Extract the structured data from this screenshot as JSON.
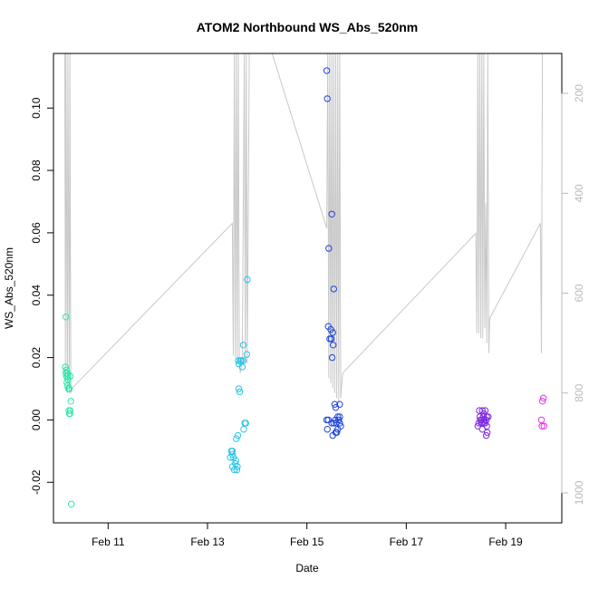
{
  "chart_data": {
    "type": "scatter",
    "title": "ATOM2 Northbound WS_Abs_520nm",
    "xlabel": "Date",
    "ylabel": "WS_Abs_520nm",
    "x_unit": "days in February",
    "xlim": [
      9.9,
      20.13
    ],
    "ylim": [
      -0.033,
      0.1175
    ],
    "y_ticks": [
      -0.02,
      0.0,
      0.02,
      0.04,
      0.06,
      0.08,
      0.1
    ],
    "y_tick_labels": [
      "-0.02",
      "0.00",
      "0.02",
      "0.04",
      "0.06",
      "0.08",
      "0.10"
    ],
    "x_ticks": [
      11,
      13,
      15,
      17,
      19
    ],
    "x_tick_labels": [
      "Feb 11",
      "Feb 13",
      "Feb 15",
      "Feb 17",
      "Feb 19"
    ],
    "secondary_y_axis": {
      "reversed": true,
      "lim": [
        120,
        1060
      ],
      "ticks": [
        200,
        400,
        600,
        800,
        1000
      ],
      "tick_labels": [
        "200",
        "400",
        "600",
        "800",
        "1000"
      ],
      "color": "#bbbbbb"
    },
    "grid": false,
    "legend": "none",
    "series": [
      {
        "marker": "open-circle",
        "color": "#2fe6a8",
        "points": [
          [
            10.15,
            0.033
          ],
          [
            10.14,
            0.017
          ],
          [
            10.16,
            0.016
          ],
          [
            10.15,
            0.015
          ],
          [
            10.18,
            0.015
          ],
          [
            10.16,
            0.014
          ],
          [
            10.19,
            0.014
          ],
          [
            10.24,
            0.014
          ],
          [
            10.19,
            0.013
          ],
          [
            10.17,
            0.012
          ],
          [
            10.18,
            0.011
          ],
          [
            10.2,
            0.01
          ],
          [
            10.22,
            0.01
          ],
          [
            10.25,
            0.006
          ],
          [
            10.21,
            0.003
          ],
          [
            10.24,
            0.003
          ],
          [
            10.22,
            0.002
          ],
          [
            10.23,
            0.002
          ],
          [
            10.26,
            -0.027
          ]
        ]
      },
      {
        "marker": "open-circle",
        "color": "#29c4e6",
        "points": [
          [
            13.8,
            0.045
          ],
          [
            13.72,
            0.024
          ],
          [
            13.79,
            0.021
          ],
          [
            13.62,
            0.019
          ],
          [
            13.66,
            0.019
          ],
          [
            13.68,
            0.019
          ],
          [
            13.72,
            0.019
          ],
          [
            13.63,
            0.018
          ],
          [
            13.7,
            0.017
          ],
          [
            13.63,
            0.01
          ],
          [
            13.65,
            0.009
          ],
          [
            13.75,
            -0.001
          ],
          [
            13.77,
            -0.001
          ],
          [
            13.73,
            -0.003
          ],
          [
            13.61,
            -0.005
          ],
          [
            13.58,
            -0.006
          ],
          [
            13.48,
            -0.01
          ],
          [
            13.5,
            -0.01
          ],
          [
            13.5,
            -0.011
          ],
          [
            13.46,
            -0.012
          ],
          [
            13.52,
            -0.012
          ],
          [
            13.57,
            -0.013
          ],
          [
            13.56,
            -0.014
          ],
          [
            13.5,
            -0.015
          ],
          [
            13.6,
            -0.015
          ],
          [
            13.54,
            -0.016
          ],
          [
            13.59,
            -0.016
          ]
        ]
      },
      {
        "marker": "open-circle",
        "color": "#2044dc",
        "points": [
          [
            15.4,
            0.112
          ],
          [
            15.41,
            0.103
          ],
          [
            15.5,
            0.066
          ],
          [
            15.44,
            0.055
          ],
          [
            15.54,
            0.042
          ],
          [
            15.43,
            0.03
          ],
          [
            15.48,
            0.029
          ],
          [
            15.52,
            0.028
          ],
          [
            15.46,
            0.026
          ],
          [
            15.49,
            0.026
          ],
          [
            15.53,
            0.024
          ],
          [
            15.51,
            0.02
          ],
          [
            15.56,
            0.005
          ],
          [
            15.66,
            0.005
          ],
          [
            15.58,
            0.004
          ],
          [
            15.62,
            0.001
          ],
          [
            15.66,
            0.001
          ],
          [
            15.4,
            0.0
          ],
          [
            15.43,
            0.0
          ],
          [
            15.57,
            0.0
          ],
          [
            15.64,
            0.0
          ],
          [
            15.5,
            -0.001
          ],
          [
            15.54,
            -0.001
          ],
          [
            15.59,
            -0.001
          ],
          [
            15.66,
            -0.001
          ],
          [
            15.68,
            -0.002
          ],
          [
            15.41,
            -0.003
          ],
          [
            15.62,
            -0.003
          ],
          [
            15.58,
            -0.004
          ],
          [
            15.6,
            -0.004
          ],
          [
            15.52,
            -0.005
          ]
        ]
      },
      {
        "marker": "open-circle",
        "color": "#7f2be0",
        "points": [
          [
            18.47,
            0.003
          ],
          [
            18.53,
            0.003
          ],
          [
            18.59,
            0.003
          ],
          [
            18.56,
            0.002
          ],
          [
            18.48,
            0.001
          ],
          [
            18.55,
            0.001
          ],
          [
            18.62,
            0.001
          ],
          [
            18.65,
            0.001
          ],
          [
            18.49,
            0.0
          ],
          [
            18.52,
            0.0
          ],
          [
            18.57,
            0.0
          ],
          [
            18.61,
            0.0
          ],
          [
            18.46,
            -0.001
          ],
          [
            18.51,
            -0.001
          ],
          [
            18.56,
            -0.001
          ],
          [
            18.59,
            -0.001
          ],
          [
            18.44,
            -0.002
          ],
          [
            18.62,
            -0.002
          ],
          [
            18.53,
            -0.003
          ],
          [
            18.63,
            -0.004
          ],
          [
            18.61,
            -0.005
          ]
        ]
      },
      {
        "marker": "open-circle",
        "color": "#e232e8",
        "points": [
          [
            19.76,
            0.007
          ],
          [
            19.74,
            0.006
          ],
          [
            19.72,
            0.0
          ],
          [
            19.73,
            -0.002
          ],
          [
            19.77,
            -0.002
          ]
        ]
      }
    ],
    "secondary_line": {
      "color": "#c8c8c8",
      "points": [
        [
          10.13,
          120
        ],
        [
          10.14,
          770
        ],
        [
          10.15,
          120
        ],
        [
          10.18,
          800
        ],
        [
          10.19,
          120
        ],
        [
          10.22,
          800
        ],
        [
          10.23,
          120
        ],
        [
          10.25,
          800
        ],
        [
          10.28,
          790
        ],
        [
          13.5,
          460
        ],
        [
          13.52,
          725
        ],
        [
          13.54,
          120
        ],
        [
          13.56,
          730
        ],
        [
          13.58,
          120
        ],
        [
          13.6,
          735
        ],
        [
          13.62,
          120
        ],
        [
          13.64,
          740
        ],
        [
          13.66,
          760
        ],
        [
          13.7,
          730
        ],
        [
          13.74,
          120
        ],
        [
          13.76,
          740
        ],
        [
          13.78,
          120
        ],
        [
          13.8,
          740
        ],
        [
          13.84,
          120
        ],
        [
          14.3,
          120
        ],
        [
          15.4,
          470
        ],
        [
          15.42,
          120
        ],
        [
          15.44,
          770
        ],
        [
          15.46,
          120
        ],
        [
          15.48,
          780
        ],
        [
          15.5,
          120
        ],
        [
          15.52,
          790
        ],
        [
          15.54,
          120
        ],
        [
          15.56,
          800
        ],
        [
          15.58,
          120
        ],
        [
          15.6,
          810
        ],
        [
          15.62,
          120
        ],
        [
          15.64,
          820
        ],
        [
          15.66,
          120
        ],
        [
          15.68,
          810
        ],
        [
          15.72,
          760
        ],
        [
          18.4,
          480
        ],
        [
          18.42,
          680
        ],
        [
          18.44,
          120
        ],
        [
          18.46,
          680
        ],
        [
          18.48,
          120
        ],
        [
          18.5,
          690
        ],
        [
          18.52,
          120
        ],
        [
          18.54,
          690
        ],
        [
          18.56,
          120
        ],
        [
          18.58,
          670
        ],
        [
          18.6,
          420
        ],
        [
          18.62,
          700
        ],
        [
          18.64,
          120
        ],
        [
          18.66,
          720
        ],
        [
          18.68,
          650
        ],
        [
          19.7,
          460
        ],
        [
          19.72,
          720
        ],
        [
          19.74,
          120
        ]
      ]
    }
  }
}
